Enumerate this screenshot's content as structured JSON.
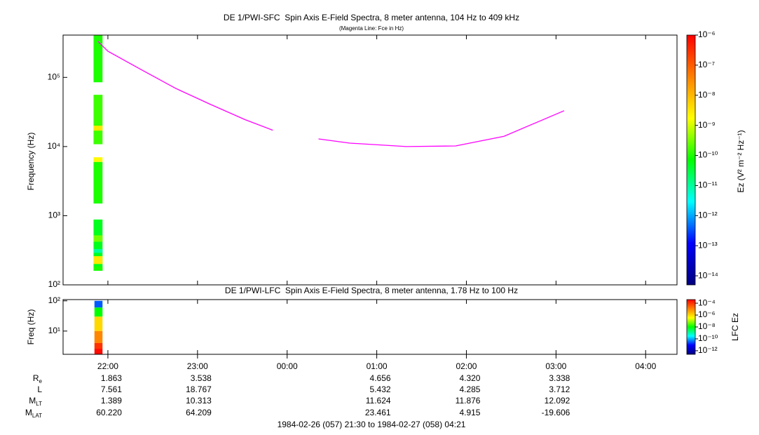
{
  "chart_data": [
    {
      "type": "spectrogram",
      "title": "DE 1/PWI-SFC  Spin Axis E-Field Spectra, 8 meter antenna, 104 Hz to 409 kHz",
      "subtitle": "(Magenta Line: Fce in Hz)",
      "ylabel": "Frequency (Hz)",
      "xlim": [
        21.5,
        28.35
      ],
      "xticks": [
        22,
        23,
        24,
        25,
        26,
        27,
        28
      ],
      "ylim": [
        100,
        409000
      ],
      "yscale": "log",
      "yticks": [
        {
          "value": 100,
          "label": "10²"
        },
        {
          "value": 1000,
          "label": "10³"
        },
        {
          "value": 10000,
          "label": "10⁴"
        },
        {
          "value": 100000,
          "label": "10⁵"
        }
      ],
      "cells": [
        {
          "x": [
            21.84,
            21.94
          ],
          "y": [
            85000,
            409000
          ],
          "value": 1e-10
        },
        {
          "x": [
            21.84,
            21.94
          ],
          "y": [
            10800,
            56000
          ],
          "value": 1.5e-10
        },
        {
          "x": [
            21.84,
            21.94
          ],
          "y": [
            17000,
            20000
          ],
          "value": 3e-09
        },
        {
          "x": [
            21.84,
            21.94
          ],
          "y": [
            1500,
            6000
          ],
          "value": 1e-10
        },
        {
          "x": [
            21.84,
            21.94
          ],
          "y": [
            6000,
            7000
          ],
          "value": 2e-09
        },
        {
          "x": [
            21.84,
            21.94
          ],
          "y": [
            160,
            880
          ],
          "value": 5e-11
        },
        {
          "x": [
            21.84,
            21.94
          ],
          "y": [
            420,
            520
          ],
          "value": 3e-10
        },
        {
          "x": [
            21.84,
            21.94
          ],
          "y": [
            290,
            330
          ],
          "value": 1e-11
        },
        {
          "x": [
            21.84,
            21.94
          ],
          "y": [
            200,
            260
          ],
          "value": 3e-09
        },
        {
          "x": [
            21.84,
            21.94
          ],
          "y": [
            160,
            185
          ],
          "value": 1e-10
        }
      ],
      "series": [
        {
          "color": "#ff00ff",
          "x": [
            21.89,
            22.0,
            22.36,
            22.75,
            23.14,
            23.53,
            23.84,
            null,
            24.35,
            24.7,
            25.33,
            25.88,
            26.42,
            27.09
          ],
          "values": [
            331000,
            239000,
            132000,
            70000,
            41000,
            24500,
            17200,
            null,
            12900,
            11200,
            10000,
            10200,
            14100,
            33000
          ]
        }
      ],
      "colorbar": {
        "label": "Ez (V² m⁻² Hz⁻¹)",
        "zlim": [
          5e-15,
          1e-06
        ],
        "scale": "log",
        "zticks": [
          {
            "value": 1e-06,
            "label": "10⁻⁶"
          },
          {
            "value": 1e-07,
            "label": "10⁻⁷"
          },
          {
            "value": 1e-08,
            "label": "10⁻⁸"
          },
          {
            "value": 1e-09,
            "label": "10⁻⁹"
          },
          {
            "value": 1e-10,
            "label": "10⁻¹⁰"
          },
          {
            "value": 1e-11,
            "label": "10⁻¹¹"
          },
          {
            "value": 1e-12,
            "label": "10⁻¹²"
          },
          {
            "value": 1e-13,
            "label": "10⁻¹³"
          },
          {
            "value": 1e-14,
            "label": "10⁻¹⁴"
          }
        ]
      }
    },
    {
      "type": "spectrogram",
      "title": "DE 1/PWI-LFC  Spin Axis E-Field Spectra, 8 meter antenna, 1.78 Hz to 100 Hz",
      "ylabel": "Freq (Hz)",
      "xlim": [
        21.5,
        28.35
      ],
      "xticks": [
        {
          "value": 22,
          "label": "22:00"
        },
        {
          "value": 23,
          "label": "23:00"
        },
        {
          "value": 24,
          "label": "00:00"
        },
        {
          "value": 25,
          "label": "01:00"
        },
        {
          "value": 26,
          "label": "02:00"
        },
        {
          "value": 27,
          "label": "03:00"
        },
        {
          "value": 28,
          "label": "04:00"
        }
      ],
      "ylim": [
        1.7,
        110
      ],
      "yscale": "log",
      "yticks": [
        {
          "value": 10,
          "label": "10¹"
        },
        {
          "value": 100,
          "label": "10²"
        }
      ],
      "cells": [
        {
          "x": [
            21.85,
            21.94
          ],
          "y": [
            60,
            100
          ],
          "value": 3e-11
        },
        {
          "x": [
            21.85,
            21.94
          ],
          "y": [
            30,
            60
          ],
          "value": 1e-08
        },
        {
          "x": [
            21.85,
            21.94
          ],
          "y": [
            10,
            30
          ],
          "value": 1e-06
        },
        {
          "x": [
            21.85,
            21.94
          ],
          "y": [
            4,
            10
          ],
          "value": 1e-05
        },
        {
          "x": [
            21.85,
            21.94
          ],
          "y": [
            2.6,
            4
          ],
          "value": 0.0001
        },
        {
          "x": [
            21.85,
            21.94
          ],
          "y": [
            1.7,
            2.6
          ],
          "value": 0.0003
        }
      ],
      "colorbar": {
        "label": "LFC Ez",
        "zlim": [
          2.5e-13,
          0.0004
        ],
        "scale": "log",
        "zticks": [
          {
            "value": 0.0001,
            "label": "10⁻⁴"
          },
          {
            "value": 1e-06,
            "label": "10⁻⁶"
          },
          {
            "value": 1e-08,
            "label": "10⁻⁸"
          },
          {
            "value": 1e-10,
            "label": "10⁻¹⁰"
          },
          {
            "value": 1e-12,
            "label": "10⁻¹²"
          }
        ]
      }
    }
  ],
  "colormap": [
    "#00007f",
    "#0000ff",
    "#00ffff",
    "#00ff00",
    "#ffff00",
    "#ff8000",
    "#ff0000"
  ],
  "ephemeris": {
    "rows": [
      {
        "label": "R",
        "sub": "e",
        "values": [
          "1.863",
          "3.538",
          null,
          "4.656",
          "4.320",
          "3.338",
          null
        ]
      },
      {
        "label": "L",
        "values": [
          "7.561",
          "18.767",
          null,
          "5.432",
          "4.285",
          "3.712",
          null
        ]
      },
      {
        "label": "M",
        "sub": "LT",
        "values": [
          "1.389",
          "10.313",
          null,
          "11.624",
          "11.876",
          "12.092",
          null
        ]
      },
      {
        "label": "M",
        "sub": "LAT",
        "values": [
          "60.220",
          "64.209",
          null,
          "23.461",
          "4.915",
          "-19.606",
          null
        ]
      }
    ]
  },
  "time_range": "1984-02-26 (057) 21:30 to 1984-02-27 (058) 04:21"
}
